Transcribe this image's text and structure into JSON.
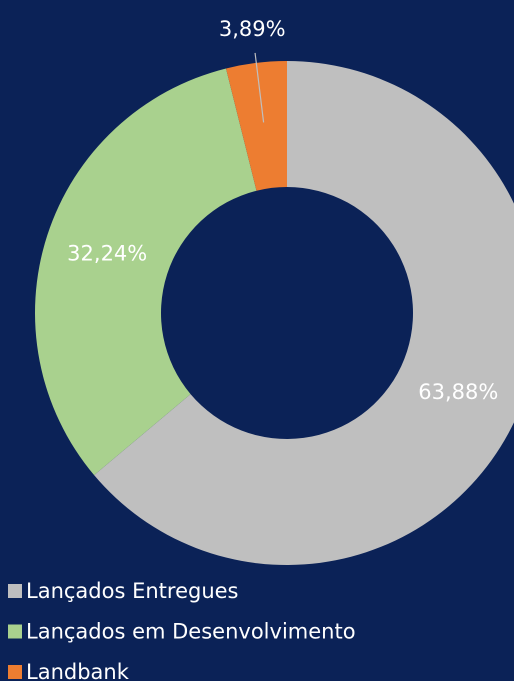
{
  "chart_data": {
    "type": "pie",
    "donut": true,
    "categories": [
      "Lançados Entregues",
      "Lançados em Desenvolvimento",
      "Landbank"
    ],
    "values": [
      63.88,
      32.24,
      3.89
    ],
    "value_labels": [
      "63,88%",
      "32,24%",
      "3,89%"
    ],
    "colors": [
      "#bfbfbf",
      "#a9d18e",
      "#ed7d31"
    ],
    "legend": "bottom-left"
  }
}
